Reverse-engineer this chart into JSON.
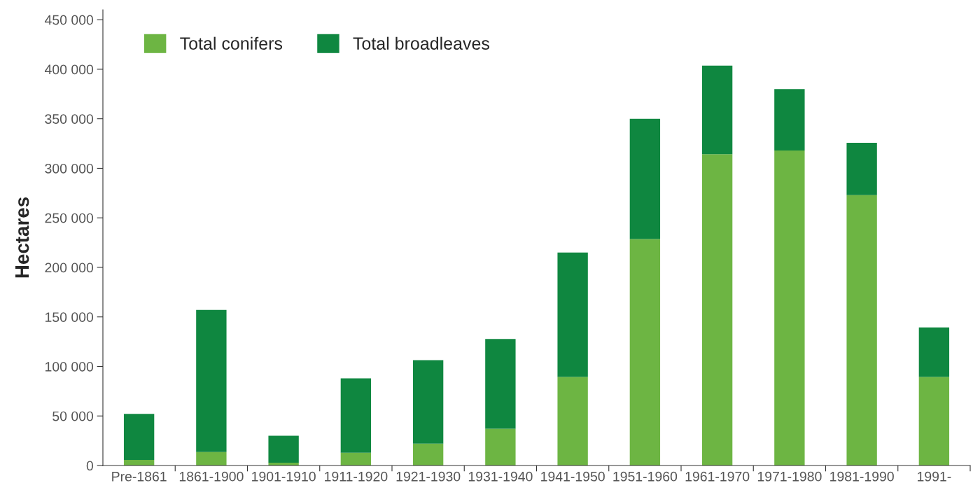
{
  "chart_data": {
    "type": "bar",
    "stacked": true,
    "ylabel": "Hectares",
    "categories": [
      "Pre-1861",
      "1861-1900",
      "1901-1910",
      "1911-1920",
      "1921-1930",
      "1931-1940",
      "1941-1950",
      "1951-1960",
      "1961-1970",
      "1971-1980",
      "1981-1990",
      "1991-"
    ],
    "series": [
      {
        "name": "Total conifers",
        "color": "#6db543",
        "values": [
          5700,
          13600,
          2900,
          12900,
          22100,
          37100,
          89300,
          228600,
          314300,
          317900,
          272900,
          89300
        ]
      },
      {
        "name": "Total broadleaves",
        "color": "#0f8740",
        "values": [
          46400,
          143500,
          27100,
          75000,
          84300,
          90700,
          125700,
          121400,
          89300,
          62100,
          52800,
          50000
        ]
      }
    ],
    "ylim": [
      0,
      460000
    ],
    "yticks": [
      {
        "value": 0,
        "label": "0"
      },
      {
        "value": 50000,
        "label": "50 000"
      },
      {
        "value": 100000,
        "label": "100 000"
      },
      {
        "value": 150000,
        "label": "150 000"
      },
      {
        "value": 200000,
        "label": "200 000"
      },
      {
        "value": 250000,
        "label": "250 000"
      },
      {
        "value": 300000,
        "label": "300 000"
      },
      {
        "value": 350000,
        "label": "350 000"
      },
      {
        "value": 400000,
        "label": "400 000"
      },
      {
        "value": 450000,
        "label": "450 000"
      }
    ],
    "grid": false,
    "legend": "top left"
  }
}
